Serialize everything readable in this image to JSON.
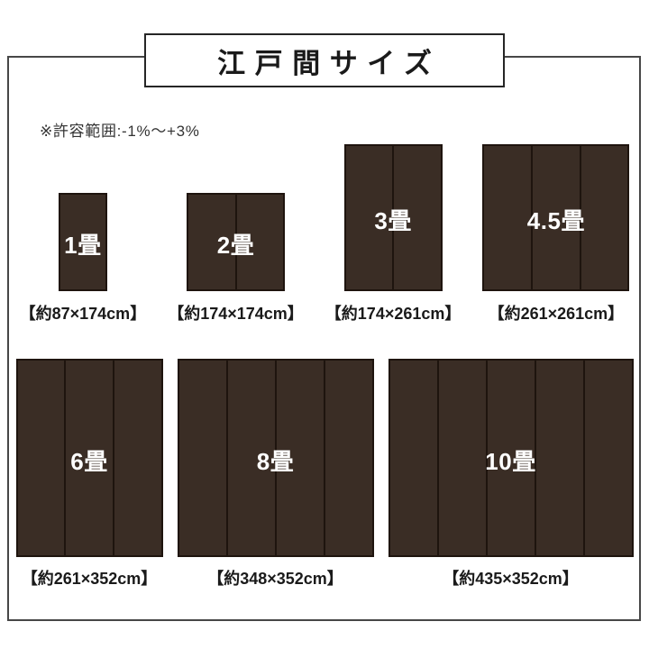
{
  "title": "江戸間サイズ",
  "note": "※許容範囲:-1%〜+3%",
  "colors": {
    "frame_border": "#474747",
    "title_border": "#262626",
    "text": "#1A1A1A",
    "note_text": "#333333",
    "mat_fill": "#3A2D25",
    "mat_line": "#1E140E",
    "mat_label": "#FFFFFF"
  },
  "scale_note": "px_per_cm",
  "rows": [
    {
      "mats": [
        {
          "id": "1jo",
          "label": "1畳",
          "dimensions": "【約87×174cm】",
          "width_cm": 87,
          "height_cm": 174,
          "panels": 1
        },
        {
          "id": "2jo",
          "label": "2畳",
          "dimensions": "【約174×174cm】",
          "width_cm": 174,
          "height_cm": 174,
          "panels": 2
        },
        {
          "id": "3jo",
          "label": "3畳",
          "dimensions": "【約174×261cm】",
          "width_cm": 174,
          "height_cm": 261,
          "panels": 2
        },
        {
          "id": "4-5jo",
          "label": "4.5畳",
          "dimensions": "【約261×261cm】",
          "width_cm": 261,
          "height_cm": 261,
          "panels": 3
        }
      ]
    },
    {
      "mats": [
        {
          "id": "6jo",
          "label": "6畳",
          "dimensions": "【約261×352cm】",
          "width_cm": 261,
          "height_cm": 352,
          "panels": 3
        },
        {
          "id": "8jo",
          "label": "8畳",
          "dimensions": "【約348×352cm】",
          "width_cm": 348,
          "height_cm": 352,
          "panels": 4
        },
        {
          "id": "10jo",
          "label": "10畳",
          "dimensions": "【約435×352cm】",
          "width_cm": 435,
          "height_cm": 352,
          "panels": 5
        }
      ]
    }
  ]
}
